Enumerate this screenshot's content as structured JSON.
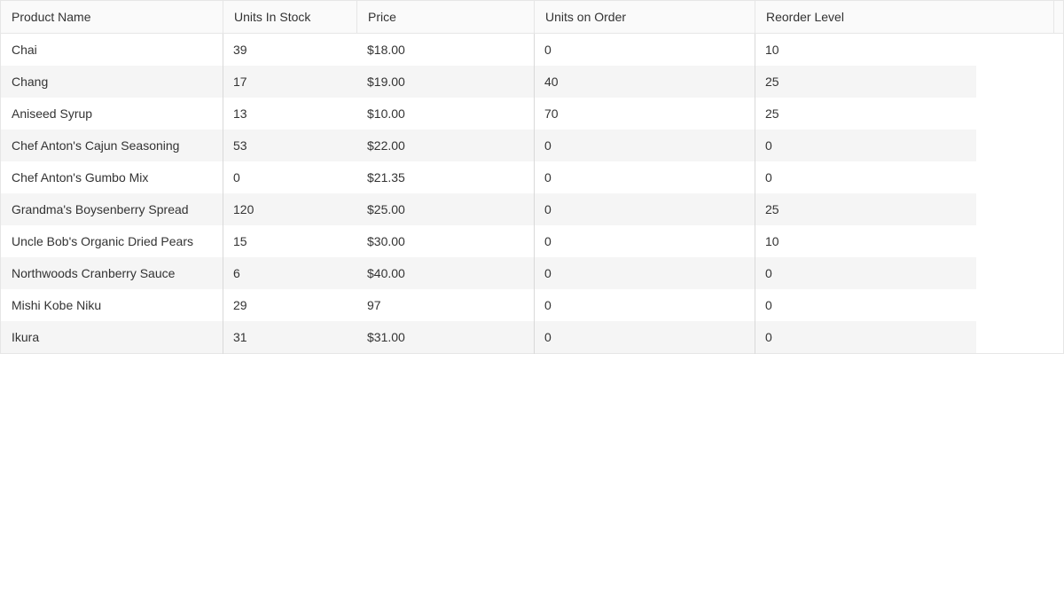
{
  "grid": {
    "columns": [
      "Product Name",
      "Units In Stock",
      "Price",
      "Units on Order",
      "Reorder Level"
    ],
    "rows": [
      [
        "Chai",
        "39",
        "$18.00",
        "0",
        "10"
      ],
      [
        "Chang",
        "17",
        "$19.00",
        "40",
        "25"
      ],
      [
        "Aniseed Syrup",
        "13",
        "$10.00",
        "70",
        "25"
      ],
      [
        "Chef Anton's Cajun Seasoning",
        "53",
        "$22.00",
        "0",
        "0"
      ],
      [
        "Chef Anton's Gumbo Mix",
        "0",
        "$21.35",
        "0",
        "0"
      ],
      [
        "Grandma's Boysenberry Spread",
        "120",
        "$25.00",
        "0",
        "25"
      ],
      [
        "Uncle Bob's Organic Dried Pears",
        "15",
        "$30.00",
        "0",
        "10"
      ],
      [
        "Northwoods Cranberry Sauce",
        "6",
        "$40.00",
        "0",
        "0"
      ],
      [
        "Mishi Kobe Niku",
        "29",
        "97",
        "0",
        "0"
      ],
      [
        "Ikura",
        "31",
        "$31.00",
        "0",
        "0"
      ]
    ]
  },
  "colors": {
    "header_background": "#fafafa",
    "alt_row_background": "#f5f5f5",
    "border": "#e6e6e6",
    "text": "#333333"
  }
}
